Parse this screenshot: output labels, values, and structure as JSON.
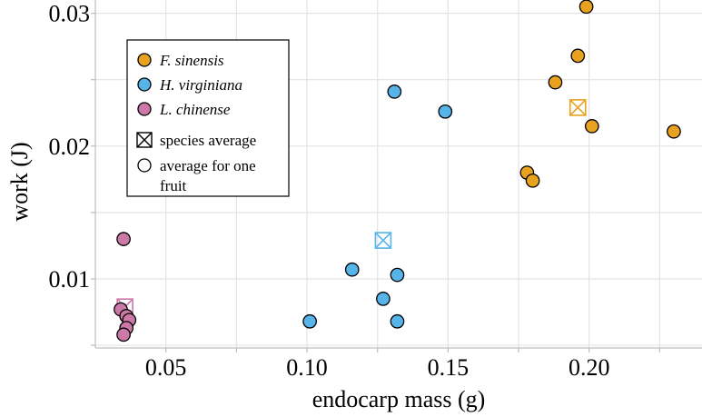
{
  "chart_data": {
    "type": "scatter",
    "xlabel": "endocarp mass (g)",
    "ylabel": "work (J)",
    "xlim": [
      0.025,
      0.24
    ],
    "ylim": [
      0.0048,
      0.031
    ],
    "x_ticks": [
      0.05,
      0.1,
      0.15,
      0.2
    ],
    "x_tick_labels": [
      "0.05",
      "0.10",
      "0.15",
      "0.20"
    ],
    "y_ticks": [
      0.01,
      0.02,
      0.03
    ],
    "y_tick_labels": [
      "0.01",
      "0.02",
      "0.03"
    ],
    "grid": true,
    "legend_position": "top-left",
    "series": [
      {
        "name": "F. sinensis",
        "color": "#E9A21F",
        "points": [
          {
            "x": 0.199,
            "y": 0.0305
          },
          {
            "x": 0.196,
            "y": 0.0268
          },
          {
            "x": 0.188,
            "y": 0.0248
          },
          {
            "x": 0.201,
            "y": 0.0215
          },
          {
            "x": 0.23,
            "y": 0.0211
          },
          {
            "x": 0.178,
            "y": 0.018
          },
          {
            "x": 0.18,
            "y": 0.0174
          }
        ],
        "average": {
          "x": 0.196,
          "y": 0.0229
        }
      },
      {
        "name": "H. virginiana",
        "color": "#56B4E9",
        "points": [
          {
            "x": 0.131,
            "y": 0.0241
          },
          {
            "x": 0.149,
            "y": 0.0226
          },
          {
            "x": 0.116,
            "y": 0.0107
          },
          {
            "x": 0.132,
            "y": 0.0103
          },
          {
            "x": 0.127,
            "y": 0.0085
          },
          {
            "x": 0.101,
            "y": 0.0068
          },
          {
            "x": 0.132,
            "y": 0.0068
          }
        ],
        "average": {
          "x": 0.127,
          "y": 0.0129
        }
      },
      {
        "name": "L. chinense",
        "color": "#CC79A7",
        "points": [
          {
            "x": 0.035,
            "y": 0.013
          },
          {
            "x": 0.034,
            "y": 0.0077
          },
          {
            "x": 0.036,
            "y": 0.0072
          },
          {
            "x": 0.037,
            "y": 0.0069
          },
          {
            "x": 0.036,
            "y": 0.0063
          },
          {
            "x": 0.035,
            "y": 0.0058
          }
        ],
        "average": {
          "x": 0.0355,
          "y": 0.0079
        }
      }
    ],
    "legend": {
      "series_labels": [
        "F. sinensis",
        "H. virginiana",
        "L. chinense"
      ],
      "species_average_label": "species average",
      "one_fruit_label_line1": "average for one",
      "one_fruit_label_line2": "fruit"
    }
  }
}
